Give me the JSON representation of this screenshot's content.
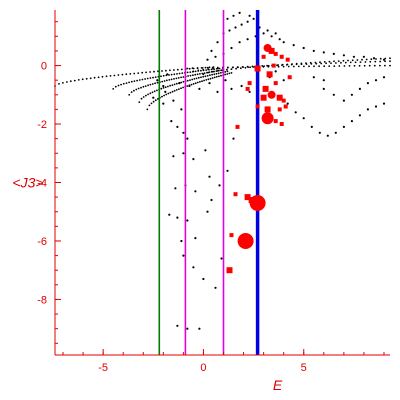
{
  "chart_data": {
    "type": "scatter",
    "title": "",
    "xlabel": "E",
    "ylabel": "<J3>",
    "xlim": [
      -7.4,
      9.3
    ],
    "ylim": [
      -9.9,
      1.9
    ],
    "x_ticks": [
      -5,
      0,
      5
    ],
    "y_ticks": [
      0,
      -2,
      -4,
      -6,
      -8
    ],
    "x_tick_labels": [
      "-5",
      "0",
      "5"
    ],
    "y_tick_labels": [
      "0",
      "-2",
      "-4",
      "-6",
      "-8"
    ],
    "grid": false,
    "colors": {
      "axes": "#e00000",
      "black_points": "#000000",
      "red_points": "#ff0000",
      "line_green": "#007a00",
      "line_magenta": "#e000e0",
      "line_blue": "#0000e0"
    },
    "vertical_lines": [
      {
        "x": -2.2,
        "color": "#007a00",
        "width": 1.6
      },
      {
        "x": -0.9,
        "color": "#e000e0",
        "width": 1.6
      },
      {
        "x": 1.0,
        "color": "#e000e0",
        "width": 1.6
      },
      {
        "x": 2.7,
        "color": "#0000e0",
        "width": 3.5
      }
    ],
    "black_curves": [
      {
        "x0": -7.4,
        "y0": -0.7,
        "x1": 0.5,
        "y1": -0.05
      },
      {
        "x0": -4.5,
        "y0": -0.8,
        "x1": 0.8,
        "y1": -0.1
      },
      {
        "x0": -3.7,
        "y0": -1.0,
        "x1": 1.0,
        "y1": -0.15
      },
      {
        "x0": -3.2,
        "y0": -1.25,
        "x1": 1.2,
        "y1": -0.2
      },
      {
        "x0": -2.8,
        "y0": -1.5,
        "x1": 1.4,
        "y1": -0.25
      },
      {
        "x0": -0.8,
        "y0": -0.1,
        "x1": 9.3,
        "y1": 0.0
      },
      {
        "x0": -0.5,
        "y0": -0.2,
        "x1": 9.3,
        "y1": 0.15
      },
      {
        "x0": 0.0,
        "y0": -0.3,
        "x1": 9.3,
        "y1": 0.25
      }
    ],
    "black_points": [
      [
        -2.5,
        -1.1
      ],
      [
        -2.0,
        -1.3
      ],
      [
        -1.8,
        -0.3
      ],
      [
        -1.6,
        -1.9
      ],
      [
        -1.3,
        -2.1
      ],
      [
        -1.0,
        -2.3
      ],
      [
        -0.8,
        -2.5
      ],
      [
        -1.5,
        -3.1
      ],
      [
        -1.0,
        -3.0
      ],
      [
        -0.5,
        -3.2
      ],
      [
        0.1,
        -2.9
      ],
      [
        -1.4,
        -4.2
      ],
      [
        -0.9,
        -4.1
      ],
      [
        -0.4,
        -4.3
      ],
      [
        0.3,
        -3.8
      ],
      [
        -1.7,
        -5.1
      ],
      [
        -1.3,
        -5.2
      ],
      [
        -0.8,
        -5.3
      ],
      [
        0.2,
        -5.0
      ],
      [
        -1.1,
        -6.0
      ],
      [
        -0.4,
        -5.9
      ],
      [
        -1.0,
        -6.5
      ],
      [
        -0.5,
        -6.9
      ],
      [
        0.0,
        -7.3
      ],
      [
        0.6,
        -7.6
      ],
      [
        -1.3,
        -8.9
      ],
      [
        -0.8,
        -9.0
      ],
      [
        -0.2,
        -9.0
      ],
      [
        0.4,
        -4.6
      ],
      [
        0.8,
        -4.1
      ],
      [
        1.2,
        -3.6
      ],
      [
        0.9,
        -6.6
      ],
      [
        1.5,
        -2.5
      ],
      [
        0.4,
        0.5
      ],
      [
        0.7,
        0.8
      ],
      [
        1.0,
        1.1
      ],
      [
        1.3,
        1.2
      ],
      [
        1.6,
        1.3
      ],
      [
        1.9,
        1.4
      ],
      [
        2.2,
        1.5
      ],
      [
        2.5,
        1.6
      ],
      [
        1.0,
        0.4
      ],
      [
        1.4,
        0.6
      ],
      [
        1.8,
        0.8
      ],
      [
        2.2,
        0.9
      ],
      [
        2.6,
        1.0
      ],
      [
        3.0,
        1.1
      ],
      [
        3.4,
        1.0
      ],
      [
        3.8,
        0.9
      ],
      [
        0.2,
        0.2
      ],
      [
        0.6,
        0.3
      ],
      [
        1.2,
        1.6
      ],
      [
        1.5,
        1.7
      ],
      [
        1.8,
        1.8
      ],
      [
        2.3,
        1.7
      ],
      [
        2.8,
        1.3
      ],
      [
        3.2,
        1.2
      ],
      [
        3.6,
        1.1
      ],
      [
        4.0,
        0.8
      ],
      [
        4.5,
        0.7
      ],
      [
        5.0,
        0.6
      ],
      [
        5.5,
        0.5
      ],
      [
        6.0,
        0.45
      ],
      [
        6.5,
        0.4
      ],
      [
        7.0,
        0.35
      ],
      [
        7.5,
        0.3
      ],
      [
        8.0,
        0.3
      ],
      [
        8.5,
        0.25
      ],
      [
        9.0,
        0.2
      ],
      [
        4.2,
        -1.3
      ],
      [
        4.6,
        -1.6
      ],
      [
        5.0,
        -1.8
      ],
      [
        5.4,
        -2.1
      ],
      [
        5.8,
        -2.3
      ],
      [
        6.2,
        -2.4
      ],
      [
        6.6,
        -2.3
      ],
      [
        7.0,
        -2.1
      ],
      [
        7.4,
        -1.9
      ],
      [
        7.8,
        -1.7
      ],
      [
        8.2,
        -1.5
      ],
      [
        8.6,
        -1.4
      ],
      [
        9.0,
        -1.3
      ],
      [
        6.0,
        -0.8
      ],
      [
        6.5,
        -1.0
      ],
      [
        7.0,
        -1.2
      ],
      [
        7.4,
        -1.0
      ],
      [
        7.8,
        -0.8
      ],
      [
        8.2,
        -0.6
      ],
      [
        8.6,
        -0.5
      ],
      [
        9.0,
        -0.4
      ],
      [
        5.5,
        -0.4
      ],
      [
        6.0,
        -0.5
      ],
      [
        4.0,
        -0.5
      ],
      [
        3.6,
        -0.2
      ],
      [
        -1.2,
        -0.6
      ],
      [
        -0.7,
        -0.7
      ],
      [
        -0.2,
        -0.8
      ],
      [
        0.3,
        -0.6
      ],
      [
        0.7,
        -0.9
      ],
      [
        1.1,
        -0.5
      ],
      [
        1.4,
        -0.8
      ],
      [
        1.9,
        -0.7
      ],
      [
        2.3,
        -0.9
      ],
      [
        3.3,
        -0.4
      ],
      [
        -1.9,
        -0.9
      ],
      [
        -1.5,
        -1.2
      ],
      [
        -1.1,
        -1.5
      ],
      [
        -2.3,
        -0.5
      ],
      [
        -2.0,
        -0.7
      ]
    ],
    "red_points": [
      [
        3.2,
        0.6,
        4
      ],
      [
        3.4,
        0.5,
        3
      ],
      [
        3.6,
        0.4,
        2
      ],
      [
        3.9,
        0.3,
        2
      ],
      [
        4.2,
        0.2,
        2
      ],
      [
        3.0,
        0.3,
        2
      ],
      [
        3.5,
        0.0,
        2
      ],
      [
        2.7,
        -0.1,
        3
      ],
      [
        3.3,
        -0.3,
        3
      ],
      [
        3.6,
        -0.6,
        2
      ],
      [
        3.1,
        -0.8,
        3
      ],
      [
        3.4,
        -1.0,
        4
      ],
      [
        3.0,
        -1.1,
        3
      ],
      [
        3.8,
        -1.1,
        3
      ],
      [
        4.1,
        -1.4,
        2
      ],
      [
        3.2,
        -1.5,
        3
      ],
      [
        2.7,
        -1.4,
        2
      ],
      [
        3.8,
        -1.5,
        2
      ],
      [
        3.6,
        -1.9,
        2
      ],
      [
        3.9,
        -2.0,
        2
      ],
      [
        2.2,
        -0.8,
        2
      ],
      [
        2.3,
        -0.6,
        2
      ],
      [
        1.7,
        -2.1,
        2
      ],
      [
        4.3,
        -0.4,
        2
      ],
      [
        3.2,
        -1.8,
        6
      ],
      [
        2.7,
        -4.7,
        8
      ],
      [
        2.1,
        -6.0,
        8
      ],
      [
        2.2,
        -4.5,
        3
      ],
      [
        2.4,
        -4.6,
        3
      ],
      [
        1.6,
        -4.4,
        2
      ],
      [
        1.4,
        -5.8,
        2
      ],
      [
        1.3,
        -7.0,
        3
      ],
      [
        4.0,
        -1.2,
        2
      ]
    ]
  }
}
